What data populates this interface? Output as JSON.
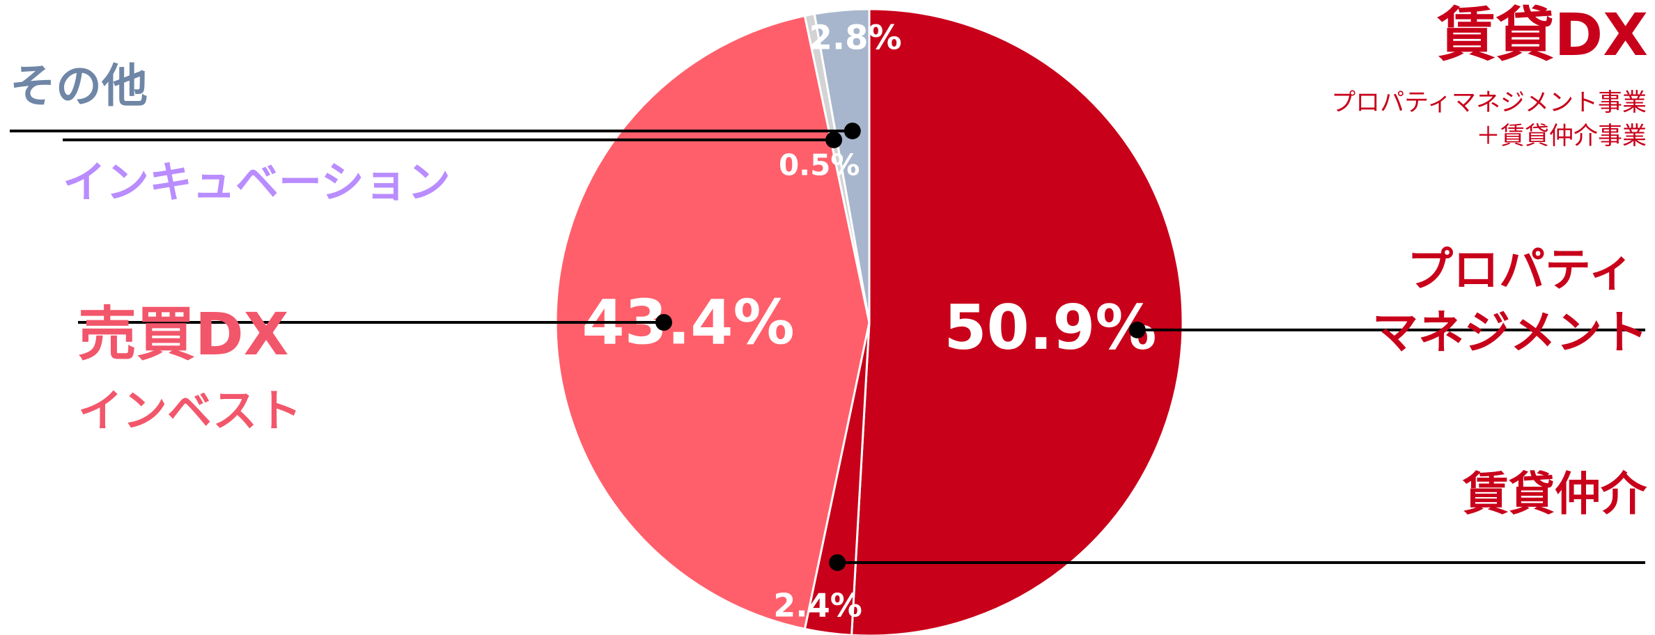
{
  "chart_data": {
    "type": "pie",
    "title": "",
    "slices": [
      {
        "name": "プロパティマネジメント",
        "value": 50.9,
        "label": "50.9%",
        "color": "#c8001a"
      },
      {
        "name": "賃貸仲介",
        "value": 2.4,
        "label": "2.4%",
        "color": "#c8001a"
      },
      {
        "name": "売買DXインベスト",
        "value": 43.4,
        "label": "43.4%",
        "color": "#ff5f6b"
      },
      {
        "name": "インキュベーション",
        "value": 0.5,
        "label": "0.5%",
        "color": "#d3d3d3"
      },
      {
        "name": "その他",
        "value": 2.8,
        "label": "2.8%",
        "color": "#a7b6cc"
      }
    ]
  },
  "legend": {
    "chintai_dx": {
      "title": "賃貸DX",
      "subtitle_line1": "プロパティマネジメント事業",
      "subtitle_line2": "＋賃貸仲介事業",
      "color": "#c8001a"
    },
    "property_management": {
      "line1": "プロパティ",
      "line2": "マネジメント",
      "color": "#c8001a"
    },
    "chintai_chukai": {
      "label": "賃貸仲介",
      "color": "#c8001a"
    },
    "baibai_dx": {
      "line1": "売買DX",
      "line2": "インベスト",
      "color": "#f2566b"
    },
    "incubation": {
      "label": "インキュベーション",
      "color": "#b98cff"
    },
    "other": {
      "label": "その他",
      "color": "#6f86a6"
    }
  }
}
